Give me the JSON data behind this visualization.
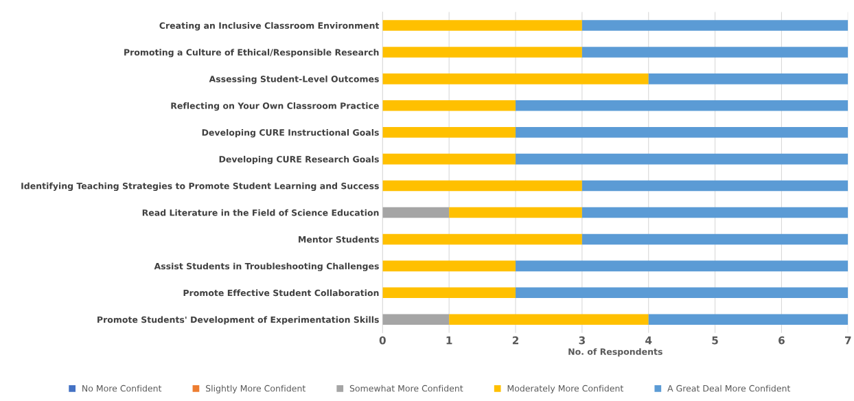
{
  "chart_data": {
    "type": "bar",
    "orientation": "horizontal",
    "stacked": true,
    "xlabel": "No. of Respondents",
    "categories": [
      "Creating an Inclusive Classroom Environment",
      "Promoting a Culture of Ethical/Responsible Research",
      "Assessing Student-Level Outcomes",
      "Reflecting on Your Own Classroom Practice",
      "Developing CURE Instructional Goals",
      "Developing CURE Research Goals",
      "Identifying Teaching Strategies to Promote Student Learning and Success",
      "Read Literature in the Field of Science Education",
      "Mentor Students",
      "Assist Students in Troubleshooting Challenges",
      "Promote Effective Student Collaboration",
      "Promote Students' Development of Experimentation Skills"
    ],
    "series": [
      {
        "name": "No More Confident",
        "color": "#4472c4",
        "values": [
          0,
          0,
          0,
          0,
          0,
          0,
          0,
          0,
          0,
          0,
          0,
          0
        ]
      },
      {
        "name": "Slightly More Confident",
        "color": "#ed7d31",
        "values": [
          0,
          0,
          0,
          0,
          0,
          0,
          0,
          0,
          0,
          0,
          0,
          0
        ]
      },
      {
        "name": "Somewhat More Confident",
        "color": "#a5a5a5",
        "values": [
          0,
          0,
          0,
          0,
          0,
          0,
          0,
          1,
          0,
          0,
          0,
          1
        ]
      },
      {
        "name": "Moderately More Confident",
        "color": "#ffc000",
        "values": [
          3,
          3,
          4,
          2,
          2,
          2,
          3,
          2,
          3,
          2,
          2,
          3
        ]
      },
      {
        "name": "A Great Deal More Confident",
        "color": "#5b9bd5",
        "values": [
          4,
          4,
          3,
          5,
          5,
          5,
          4,
          4,
          4,
          5,
          5,
          3
        ]
      }
    ],
    "xlim": [
      0,
      7
    ],
    "xticks": [
      0,
      1,
      2,
      3,
      4,
      5,
      6,
      7
    ],
    "grid": "x",
    "legend": "bottom"
  }
}
